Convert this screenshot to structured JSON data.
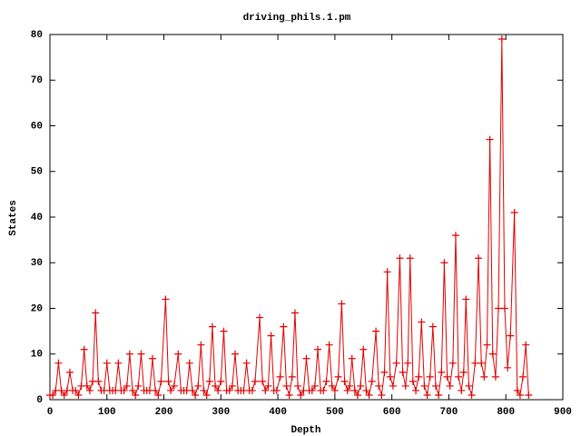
{
  "chart_data": {
    "type": "line",
    "title": "driving_phils.1.pm",
    "xlabel": "Depth",
    "ylabel": "States",
    "x": [
      0,
      5,
      10,
      15,
      20,
      25,
      30,
      35,
      40,
      45,
      50,
      55,
      60,
      65,
      70,
      75,
      80,
      85,
      90,
      95,
      100,
      105,
      110,
      115,
      120,
      125,
      130,
      135,
      140,
      145,
      150,
      155,
      160,
      165,
      170,
      175,
      180,
      185,
      190,
      195,
      203,
      208,
      212,
      218,
      225,
      230,
      235,
      240,
      245,
      250,
      255,
      260,
      265,
      270,
      275,
      280,
      285,
      290,
      295,
      300,
      305,
      310,
      315,
      320,
      325,
      330,
      335,
      340,
      345,
      350,
      355,
      360,
      368,
      373,
      378,
      383,
      388,
      393,
      398,
      404,
      410,
      415,
      420,
      425,
      430,
      435,
      440,
      445,
      450,
      455,
      460,
      465,
      470,
      475,
      480,
      485,
      490,
      495,
      500,
      506,
      512,
      517,
      522,
      526,
      530,
      535,
      540,
      545,
      550,
      555,
      560,
      565,
      572,
      577,
      582,
      587,
      592,
      597,
      602,
      608,
      614,
      619,
      624,
      628,
      632,
      637,
      642,
      647,
      652,
      657,
      662,
      667,
      672,
      677,
      682,
      687,
      692,
      697,
      702,
      707,
      712,
      717,
      722,
      726,
      730,
      735,
      740,
      746,
      752,
      757,
      762,
      767,
      772,
      777,
      782,
      787,
      793,
      798,
      803,
      808,
      815,
      820,
      825,
      830,
      835,
      840
    ],
    "series": [
      {
        "color": "#e00000",
        "values": [
          1,
          1,
          2,
          8,
          2,
          1,
          2,
          6,
          2,
          2,
          1,
          3,
          11,
          3,
          2,
          4,
          19,
          4,
          2,
          2,
          8,
          2,
          2,
          2,
          8,
          2,
          2,
          3,
          10,
          2,
          1,
          3,
          10,
          2,
          2,
          2,
          9,
          2,
          1,
          4,
          22,
          4,
          2,
          3,
          10,
          2,
          2,
          2,
          8,
          2,
          1,
          3,
          12,
          2,
          1,
          4,
          16,
          3,
          2,
          4,
          15,
          2,
          2,
          3,
          10,
          2,
          2,
          2,
          8,
          2,
          2,
          4,
          18,
          4,
          2,
          3,
          14,
          2,
          2,
          5,
          16,
          3,
          1,
          5,
          19,
          3,
          1,
          2,
          9,
          2,
          2,
          3,
          11,
          2,
          2,
          4,
          12,
          3,
          2,
          5,
          21,
          4,
          2,
          3,
          9,
          2,
          1,
          3,
          11,
          2,
          1,
          4,
          15,
          3,
          1,
          6,
          28,
          5,
          3,
          8,
          31,
          6,
          3,
          8,
          31,
          4,
          2,
          5,
          17,
          3,
          1,
          5,
          16,
          3,
          1,
          6,
          30,
          5,
          3,
          8,
          36,
          5,
          2,
          6,
          22,
          3,
          1,
          8,
          31,
          8,
          5,
          12,
          57,
          10,
          5,
          20,
          79,
          20,
          7,
          14,
          41,
          2,
          1,
          5,
          12,
          1
        ]
      }
    ],
    "xlim": [
      0,
      900
    ],
    "xticks": [
      0,
      100,
      200,
      300,
      400,
      500,
      600,
      700,
      800,
      900
    ],
    "ylim": [
      0,
      80
    ],
    "yticks": [
      0,
      10,
      20,
      30,
      40,
      50,
      60,
      70,
      80
    ]
  }
}
